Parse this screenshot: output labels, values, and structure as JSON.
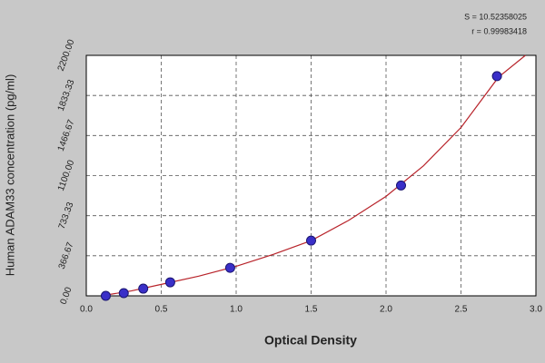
{
  "chart_data": {
    "type": "scatter",
    "xlabel": "Optical Density",
    "ylabel": "Human ADAM33 concentration (pg/ml)",
    "annotations": [
      "S = 10.52358025",
      "r = 0.99983418"
    ],
    "x": [
      0.13,
      0.25,
      0.38,
      0.56,
      0.96,
      1.5,
      2.1,
      2.74
    ],
    "values": [
      0,
      25,
      66,
      124,
      256,
      505,
      1010,
      2010
    ],
    "color": "#3a2fc8",
    "curve": {
      "x": [
        0.1,
        0.3,
        0.5,
        0.75,
        1.0,
        1.25,
        1.5,
        1.75,
        2.0,
        2.25,
        2.5,
        2.75,
        2.93
      ],
      "y": [
        0,
        45,
        105,
        180,
        270,
        380,
        505,
        690,
        910,
        1190,
        1540,
        2000,
        2200
      ],
      "color": "#b8232a"
    },
    "xlim": [
      0,
      3
    ],
    "ylim": [
      0,
      2200
    ],
    "xticks": [
      {
        "value": 0,
        "label": "0.0"
      },
      {
        "value": 0.5,
        "label": "0.5"
      },
      {
        "value": 1,
        "label": "1.0"
      },
      {
        "value": 1.5,
        "label": "1.5"
      },
      {
        "value": 2,
        "label": "2.0"
      },
      {
        "value": 2.5,
        "label": "2.5"
      },
      {
        "value": 3,
        "label": "3.0"
      }
    ],
    "yticks": [
      {
        "value": 0,
        "label": "0.00"
      },
      {
        "value": 366.67,
        "label": "366.67"
      },
      {
        "value": 733.33,
        "label": "733.33"
      },
      {
        "value": 1100,
        "label": "1100.00"
      },
      {
        "value": 1466.67,
        "label": "1466.67"
      },
      {
        "value": 1833.33,
        "label": "1833.33"
      },
      {
        "value": 2200,
        "label": "2200.00"
      }
    ],
    "grid": true
  }
}
